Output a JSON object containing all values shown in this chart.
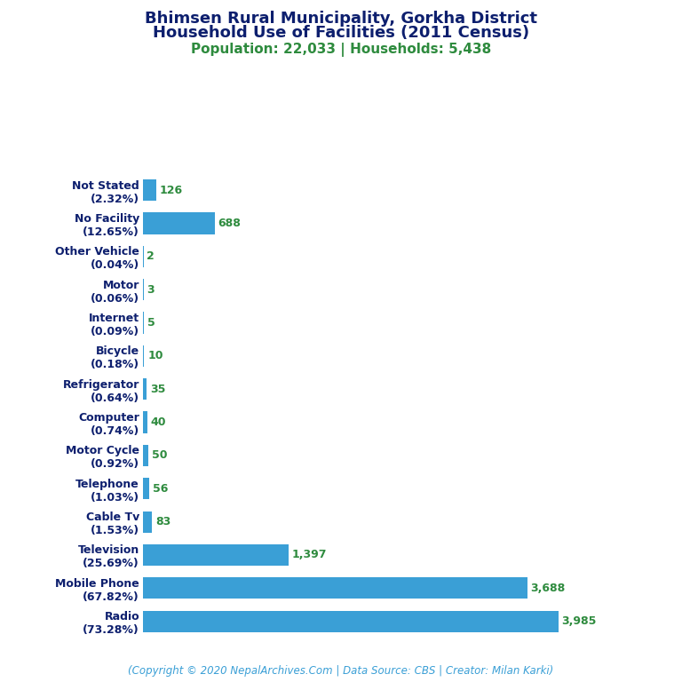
{
  "title_line1": "Bhimsen Rural Municipality, Gorkha District",
  "title_line2": "Household Use of Facilities (2011 Census)",
  "subtitle": "Population: 22,033 | Households: 5,438",
  "footer": "(Copyright © 2020 NepalArchives.Com | Data Source: CBS | Creator: Milan Karki)",
  "categories": [
    "Not Stated\n(2.32%)",
    "No Facility\n(12.65%)",
    "Other Vehicle\n(0.04%)",
    "Motor\n(0.06%)",
    "Internet\n(0.09%)",
    "Bicycle\n(0.18%)",
    "Refrigerator\n(0.64%)",
    "Computer\n(0.74%)",
    "Motor Cycle\n(0.92%)",
    "Telephone\n(1.03%)",
    "Cable Tv\n(1.53%)",
    "Television\n(25.69%)",
    "Mobile Phone\n(67.82%)",
    "Radio\n(73.28%)"
  ],
  "values": [
    126,
    688,
    2,
    3,
    5,
    10,
    35,
    40,
    50,
    56,
    83,
    1397,
    3688,
    3985
  ],
  "bar_color": "#3a9fd6",
  "title_color": "#0d1f6e",
  "subtitle_color": "#2e8b3e",
  "value_color": "#2e8b3e",
  "footer_color": "#3a9fd6",
  "label_color": "#0d1f6e",
  "background_color": "#ffffff",
  "title_fontsize": 13,
  "subtitle_fontsize": 11,
  "label_fontsize": 9,
  "value_fontsize": 9,
  "footer_fontsize": 8.5
}
